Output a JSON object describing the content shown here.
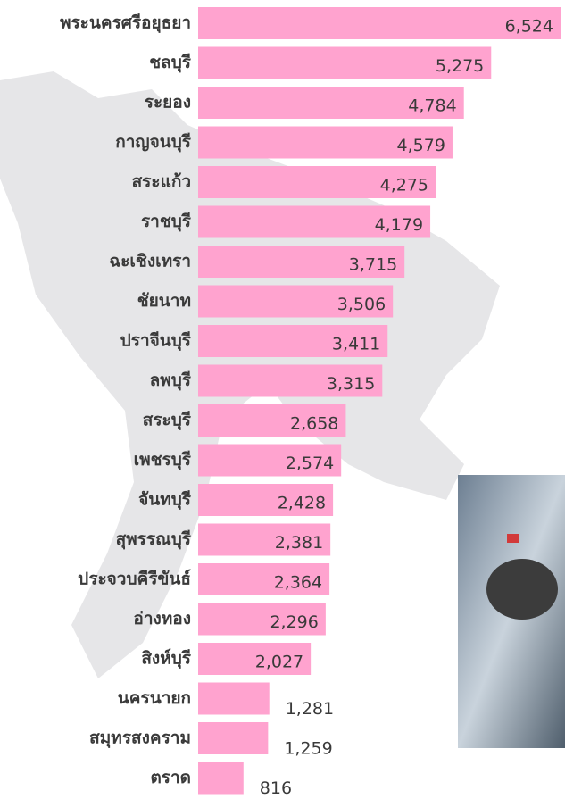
{
  "chart_data": {
    "type": "bar",
    "categories": [
      "พระนครศรีอยุธยา",
      "ชลบุรี",
      "ระยอง",
      "กาญจนบุรี",
      "สระแก้ว",
      "ราชบุรี",
      "ฉะเชิงเทรา",
      "ชัยนาท",
      "ปราจีนบุรี",
      "ลพบุรี",
      "สระบุรี",
      "เพชรบุรี",
      "จันทบุรี",
      "สุพรรณบุรี",
      "ประจวบคีรีขันธ์",
      "อ่างทอง",
      "สิงห์บุรี",
      "นครนายก",
      "สมุทรสงคราม",
      "ตราด"
    ],
    "values": [
      6524,
      5275,
      4784,
      4579,
      4275,
      4179,
      3715,
      3506,
      3411,
      3315,
      2658,
      2574,
      2428,
      2381,
      2364,
      2296,
      2027,
      1281,
      1259,
      816
    ],
    "value_labels": [
      "6,524",
      "5,275",
      "4,784",
      "4,579",
      "4,275",
      "4,179",
      "3,715",
      "3,506",
      "3,411",
      "3,315",
      "2,658",
      "2,574",
      "2,428",
      "2,381",
      "2,364",
      "2,296",
      "2,027",
      "1,281",
      "1,259",
      "816"
    ],
    "color": "#ffa3cf"
  }
}
